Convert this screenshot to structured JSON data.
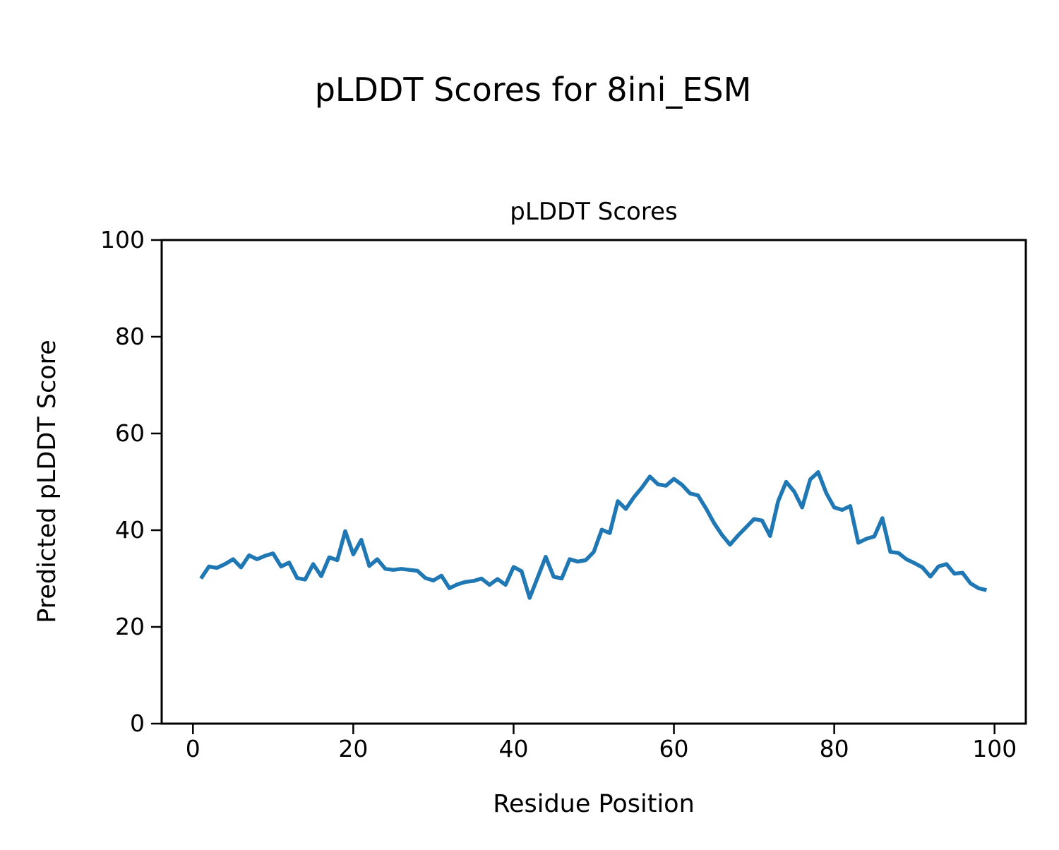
{
  "figure": {
    "suptitle": "pLDDT Scores for 8ini_ESM",
    "background": "#ffffff"
  },
  "chart_data": {
    "type": "line",
    "title": "pLDDT Scores",
    "xlabel": "Residue Position",
    "ylabel": "Predicted pLDDT Score",
    "xlim": [
      -3.9,
      103.9
    ],
    "ylim": [
      0,
      100
    ],
    "xticks": [
      0,
      20,
      40,
      60,
      80,
      100
    ],
    "yticks": [
      0,
      20,
      40,
      60,
      80,
      100
    ],
    "grid": false,
    "legend_position": "none",
    "line_color": "#1f77b4",
    "axis_color": "#000000",
    "series": [
      {
        "name": "pLDDT",
        "x": [
          1,
          2,
          3,
          4,
          5,
          6,
          7,
          8,
          9,
          10,
          11,
          12,
          13,
          14,
          15,
          16,
          17,
          18,
          19,
          20,
          21,
          22,
          23,
          24,
          25,
          26,
          27,
          28,
          29,
          30,
          31,
          32,
          33,
          34,
          35,
          36,
          37,
          38,
          39,
          40,
          41,
          42,
          43,
          44,
          45,
          46,
          47,
          48,
          49,
          50,
          51,
          52,
          53,
          54,
          55,
          56,
          57,
          58,
          59,
          60,
          61,
          62,
          63,
          64,
          65,
          66,
          67,
          68,
          69,
          70,
          71,
          72,
          73,
          74,
          75,
          76,
          77,
          78,
          79,
          80,
          81,
          82,
          83,
          84,
          85,
          86,
          87,
          88,
          89,
          90,
          91,
          92,
          93,
          94,
          95,
          96,
          97,
          98,
          99
        ],
        "values": [
          30.0,
          32.5,
          32.2,
          33.0,
          34.0,
          32.3,
          34.8,
          34.0,
          34.7,
          35.2,
          32.5,
          33.3,
          30.1,
          29.8,
          33.0,
          30.5,
          34.4,
          33.8,
          39.8,
          35.0,
          38.0,
          32.6,
          34.0,
          32.0,
          31.8,
          32.0,
          31.8,
          31.6,
          30.1,
          29.6,
          30.6,
          28.0,
          28.8,
          29.3,
          29.5,
          30.0,
          28.7,
          29.9,
          28.7,
          32.4,
          31.5,
          26.0,
          30.2,
          34.5,
          30.4,
          30.0,
          34.0,
          33.5,
          33.8,
          35.5,
          40.1,
          39.4,
          46.0,
          44.4,
          46.8,
          48.8,
          51.1,
          49.5,
          49.2,
          50.6,
          49.4,
          47.6,
          47.2,
          44.5,
          41.5,
          39.0,
          37.0,
          38.9,
          40.6,
          42.3,
          42.0,
          38.8,
          46.0,
          50.0,
          48.0,
          44.7,
          50.5,
          52.0,
          47.7,
          44.7,
          44.2,
          45.0,
          37.4,
          38.2,
          38.7,
          42.5,
          35.5,
          35.3,
          34.0,
          33.2,
          32.3,
          30.4,
          32.5,
          33.0,
          31.0,
          31.2,
          29.0,
          28.0,
          27.6
        ]
      }
    ]
  }
}
